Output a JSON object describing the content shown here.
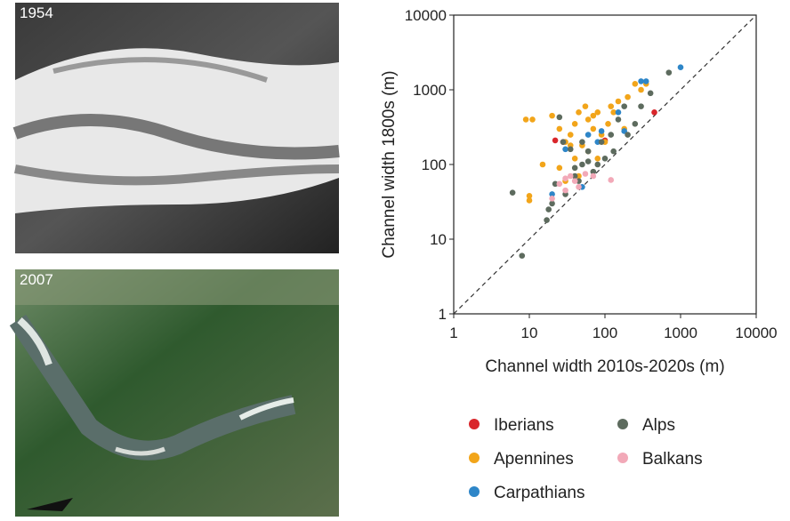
{
  "photos": [
    {
      "label": "1954"
    },
    {
      "label": "2007"
    }
  ],
  "chart_data": {
    "type": "scatter",
    "log_scale": true,
    "xlabel": "Channel width 2010s-2020s (m)",
    "ylabel": "Channel width 1800s (m)",
    "xlim": [
      1,
      10000
    ],
    "ylim": [
      1,
      10000
    ],
    "xticks": [
      1,
      10,
      100,
      1000,
      10000
    ],
    "yticks": [
      1,
      10,
      100,
      1000,
      10000
    ],
    "series": [
      {
        "name": "Iberians",
        "color": "#d9262b",
        "x": [
          22,
          28,
          100,
          450
        ],
        "values": [
          210,
          200,
          210,
          500
        ]
      },
      {
        "name": "Apennines",
        "color": "#f2a51a",
        "x": [
          9,
          11,
          10,
          10,
          15,
          20,
          25,
          30,
          35,
          40,
          45,
          50,
          55,
          60,
          70,
          80,
          90,
          100,
          120,
          150,
          200,
          250,
          300,
          350,
          40,
          60,
          25,
          30,
          45,
          80,
          70,
          110,
          130,
          180,
          35
        ],
        "values": [
          400,
          400,
          38,
          33,
          100,
          450,
          300,
          200,
          250,
          350,
          500,
          180,
          600,
          400,
          300,
          500,
          250,
          200,
          600,
          700,
          800,
          1200,
          1000,
          1200,
          120,
          150,
          90,
          60,
          70,
          120,
          450,
          350,
          500,
          300,
          180
        ]
      },
      {
        "name": "Carpathians",
        "color": "#2e86c8",
        "x": [
          20,
          30,
          60,
          80,
          90,
          180,
          300,
          350,
          1000,
          150,
          50
        ],
        "values": [
          40,
          160,
          250,
          200,
          280,
          280,
          1300,
          1300,
          2000,
          500,
          50
        ]
      },
      {
        "name": "Alps",
        "color": "#5d6b5e",
        "x": [
          6,
          8,
          17,
          18,
          22,
          25,
          28,
          30,
          35,
          40,
          45,
          50,
          60,
          70,
          80,
          90,
          100,
          130,
          150,
          200,
          250,
          300,
          400,
          700,
          20,
          40,
          60,
          180,
          120,
          50
        ],
        "values": [
          42,
          6,
          18,
          25,
          55,
          430,
          200,
          40,
          160,
          90,
          60,
          100,
          150,
          80,
          100,
          200,
          120,
          150,
          400,
          250,
          350,
          600,
          900,
          1700,
          30,
          70,
          110,
          600,
          250,
          200
        ]
      },
      {
        "name": "Balkans",
        "color": "#f2a9b8",
        "x": [
          20,
          25,
          30,
          35,
          40,
          55,
          70,
          120,
          45,
          30
        ],
        "values": [
          35,
          55,
          65,
          70,
          60,
          75,
          70,
          62,
          50,
          45
        ]
      }
    ]
  }
}
